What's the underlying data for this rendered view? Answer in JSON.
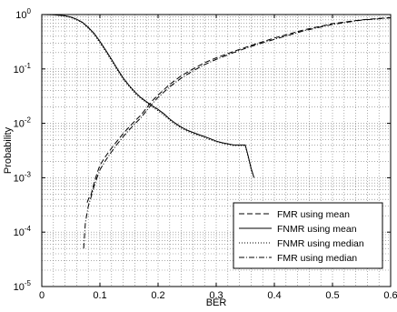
{
  "chart_data": {
    "type": "line",
    "xlabel": "BER",
    "ylabel": "Probability",
    "xlim": [
      0,
      0.6
    ],
    "ylim": [
      1e-05,
      1
    ],
    "yscale": "log",
    "grid": true,
    "legend_position": "lower-right",
    "x_ticks": [
      "0",
      "0.1",
      "0.2",
      "0.3",
      "0.4",
      "0.5",
      "0.6"
    ],
    "x_tick_values": [
      0,
      0.1,
      0.2,
      0.3,
      0.4,
      0.5,
      0.6
    ],
    "y_ticks": [
      {
        "base": "10",
        "exp": "0",
        "value": 1
      },
      {
        "base": "10",
        "exp": "-1",
        "value": 0.1
      },
      {
        "base": "10",
        "exp": "-2",
        "value": 0.01
      },
      {
        "base": "10",
        "exp": "-3",
        "value": 0.001
      },
      {
        "base": "10",
        "exp": "-4",
        "value": 0.0001
      },
      {
        "base": "10",
        "exp": "-5",
        "value": 1e-05
      }
    ],
    "series": [
      {
        "name": "FMR using mean",
        "style": "dashed",
        "color": "#000000",
        "x": [
          0.078,
          0.08,
          0.085,
          0.09,
          0.095,
          0.1,
          0.11,
          0.12,
          0.13,
          0.14,
          0.15,
          0.16,
          0.17,
          0.18,
          0.19,
          0.2,
          0.22,
          0.24,
          0.26,
          0.28,
          0.3,
          0.33,
          0.36,
          0.4,
          0.45,
          0.5,
          0.55,
          0.6
        ],
        "y": [
          0.00035,
          0.0004,
          0.0005,
          0.0008,
          0.0012,
          0.0017,
          0.0025,
          0.0035,
          0.0048,
          0.0065,
          0.0085,
          0.011,
          0.014,
          0.019,
          0.026,
          0.033,
          0.052,
          0.075,
          0.1,
          0.13,
          0.16,
          0.21,
          0.27,
          0.37,
          0.52,
          0.68,
          0.8,
          0.88
        ]
      },
      {
        "name": "FNMR using mean",
        "style": "solid",
        "color": "#000000",
        "x": [
          0.0,
          0.02,
          0.04,
          0.05,
          0.06,
          0.07,
          0.08,
          0.09,
          0.1,
          0.11,
          0.12,
          0.13,
          0.14,
          0.15,
          0.16,
          0.17,
          0.18,
          0.19,
          0.2,
          0.21,
          0.22,
          0.23,
          0.24,
          0.25,
          0.26,
          0.27,
          0.28,
          0.29,
          0.3,
          0.31,
          0.32,
          0.33,
          0.34,
          0.35,
          0.355,
          0.36,
          0.365
        ],
        "y": [
          1.0,
          0.99,
          0.95,
          0.9,
          0.82,
          0.72,
          0.58,
          0.45,
          0.32,
          0.22,
          0.15,
          0.1,
          0.068,
          0.05,
          0.038,
          0.03,
          0.025,
          0.021,
          0.018,
          0.015,
          0.012,
          0.01,
          0.0085,
          0.0075,
          0.0068,
          0.0062,
          0.0057,
          0.0052,
          0.0047,
          0.0044,
          0.0042,
          0.004,
          0.004,
          0.004,
          0.0025,
          0.0015,
          0.001
        ]
      },
      {
        "name": "FNMR using median",
        "style": "dotted",
        "color": "#000000",
        "x": [
          0.0,
          0.02,
          0.04,
          0.05,
          0.06,
          0.07,
          0.08,
          0.09,
          0.1,
          0.11,
          0.12,
          0.13,
          0.14,
          0.15,
          0.16,
          0.17,
          0.18,
          0.19,
          0.2,
          0.21,
          0.22,
          0.23,
          0.24,
          0.25,
          0.26,
          0.27,
          0.28,
          0.29,
          0.3,
          0.31,
          0.32,
          0.33,
          0.34,
          0.35,
          0.355,
          0.36,
          0.365
        ],
        "y": [
          1.0,
          0.99,
          0.94,
          0.88,
          0.8,
          0.7,
          0.56,
          0.43,
          0.3,
          0.21,
          0.14,
          0.095,
          0.065,
          0.048,
          0.036,
          0.029,
          0.024,
          0.02,
          0.017,
          0.014,
          0.0115,
          0.0095,
          0.0082,
          0.0072,
          0.0065,
          0.006,
          0.0055,
          0.005,
          0.0046,
          0.0043,
          0.0041,
          0.0039,
          0.0039,
          0.0039,
          0.0024,
          0.0014,
          0.001
        ]
      },
      {
        "name": "FMR using median",
        "style": "dashdot",
        "color": "#000000",
        "x": [
          0.072,
          0.075,
          0.08,
          0.085,
          0.09,
          0.095,
          0.1,
          0.11,
          0.12,
          0.13,
          0.14,
          0.15,
          0.16,
          0.17,
          0.18,
          0.19,
          0.2,
          0.22,
          0.24,
          0.26,
          0.28,
          0.3,
          0.33,
          0.36,
          0.4,
          0.45,
          0.5,
          0.55,
          0.6
        ],
        "y": [
          5e-05,
          0.00015,
          0.0003,
          0.00045,
          0.0007,
          0.001,
          0.0014,
          0.0021,
          0.003,
          0.0042,
          0.0057,
          0.0075,
          0.0098,
          0.0125,
          0.017,
          0.023,
          0.03,
          0.047,
          0.068,
          0.092,
          0.12,
          0.15,
          0.2,
          0.26,
          0.35,
          0.5,
          0.66,
          0.79,
          0.87
        ]
      }
    ]
  }
}
